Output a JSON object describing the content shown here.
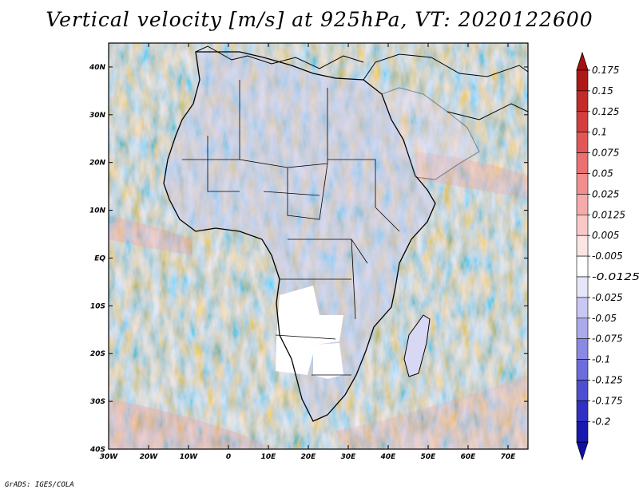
{
  "title": "Vertical velocity [m/s] at 925hPa, VT: 2020122600",
  "credit": "GrADS: IGES/COLA",
  "map": {
    "projection": "lat-lon",
    "lon_range": [
      -30,
      75
    ],
    "lat_range": [
      -40,
      45
    ],
    "lon_ticks": [
      -30,
      -20,
      -10,
      0,
      10,
      20,
      30,
      40,
      50,
      60,
      70
    ],
    "lon_labels": [
      "30W",
      "20W",
      "10W",
      "0",
      "10E",
      "20E",
      "30E",
      "40E",
      "50E",
      "60E",
      "70E"
    ],
    "lat_ticks": [
      -40,
      -30,
      -20,
      -10,
      0,
      10,
      20,
      30,
      40
    ],
    "lat_labels": [
      "40S",
      "30S",
      "20S",
      "10S",
      "EQ",
      "10N",
      "20N",
      "30N",
      "40N"
    ],
    "land_color": "#ffffff",
    "boundary_color": "#000000"
  },
  "colorbar": {
    "labels": [
      "0.175",
      "0.15",
      "0.125",
      "0.1",
      "0.075",
      "0.05",
      "0.025",
      "0.0125",
      "0.005",
      "-0.005",
      "-0.0125",
      "-0.025",
      "-0.05",
      "-0.075",
      "-0.1",
      "-0.125",
      "-0.175",
      "-0.2"
    ],
    "colors": [
      "#b01818",
      "#c42a2a",
      "#d43e3e",
      "#e25656",
      "#ec7070",
      "#f28e8e",
      "#f7aaaa",
      "#fbc8c8",
      "#fde4e4",
      "#ffffff",
      "#e6e6fa",
      "#c8c8f2",
      "#aaaaec",
      "#8a8ae4",
      "#6c6cdc",
      "#4e4ed2",
      "#3030c4",
      "#1818b0"
    ],
    "top_arrow_color": "#a81010",
    "bottom_arrow_color": "#1010a8"
  }
}
